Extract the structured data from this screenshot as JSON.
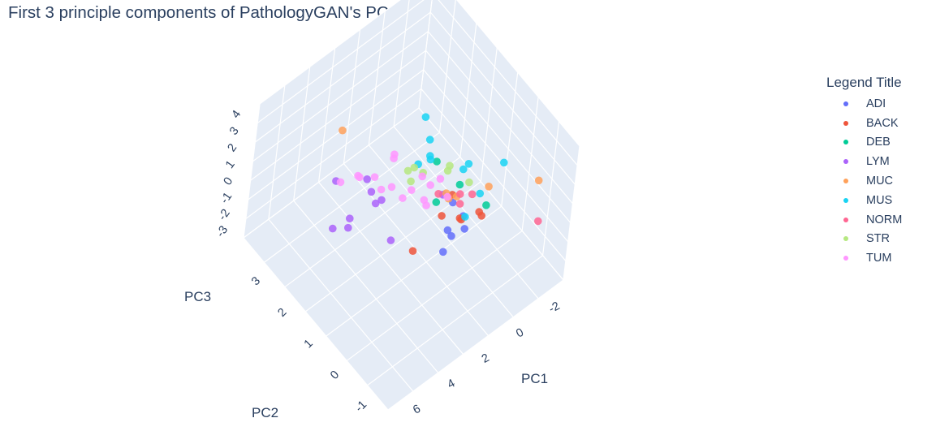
{
  "chart_data": {
    "type": "scatter",
    "title": "First 3 principle components of PathologyGAN's PCA feature",
    "legend_title": "Legend Title",
    "legend_position": "top-right",
    "grid": true,
    "axes": {
      "x": {
        "label": "PC1",
        "ticks": [
          "-2",
          "0",
          "2",
          "4",
          "6"
        ]
      },
      "y": {
        "label": "PC2",
        "ticks": [
          "-1",
          "0",
          "1",
          "2",
          "3"
        ]
      },
      "z": {
        "label": "PC3",
        "ticks": [
          "-3",
          "-2",
          "-1",
          "0",
          "1",
          "2",
          "3",
          "4"
        ]
      }
    },
    "series": [
      {
        "name": "ADI",
        "color": "#636efa",
        "x": [
          2.0,
          1.6,
          1.2,
          1.9,
          2.6,
          1.4
        ],
        "y": [
          -0.2,
          -0.4,
          -0.1,
          0.0,
          -0.3,
          0.2
        ],
        "z": [
          0.5,
          1.0,
          0.9,
          0.4,
          0.2,
          1.3
        ]
      },
      {
        "name": "BACK",
        "color": "#ef553b",
        "x": [
          1.8,
          2.2,
          3.2,
          0.8,
          1.0,
          1.5,
          1.3
        ],
        "y": [
          -0.3,
          0.1,
          0.4,
          -0.4,
          -0.6,
          -0.2,
          0.3
        ],
        "z": [
          1.6,
          1.3,
          -0.6,
          1.4,
          1.7,
          1.1,
          1.5
        ]
      },
      {
        "name": "DEB",
        "color": "#00cc96",
        "x": [
          0.4,
          0.9,
          1.2,
          1.7
        ],
        "y": [
          -0.4,
          0.3,
          1.0,
          0.6
        ],
        "z": [
          1.5,
          1.8,
          2.1,
          0.8
        ]
      },
      {
        "name": "LYM",
        "color": "#ab63fa",
        "x": [
          3.6,
          4.0,
          5.0,
          4.6,
          4.3,
          5.8,
          5.4,
          4.6,
          2.1,
          2.9
        ],
        "y": [
          2.0,
          1.6,
          2.3,
          1.1,
          0.6,
          1.8,
          1.5,
          1.9,
          0.2,
          1.8
        ],
        "z": [
          1.0,
          1.3,
          1.4,
          2.0,
          0.5,
          0.1,
          0.4,
          -0.4,
          2.3,
          -0.4
        ]
      },
      {
        "name": "MUC",
        "color": "#ffa15a",
        "x": [
          -2.0,
          -0.2,
          1.2,
          1.7,
          4.4,
          1.9
        ],
        "y": [
          -0.8,
          -0.1,
          0.2,
          0.3,
          2.6,
          0.1
        ],
        "z": [
          1.9,
          1.6,
          1.5,
          1.9,
          3.4,
          2.1
        ]
      },
      {
        "name": "MUS",
        "color": "#19d3f3",
        "x": [
          0.3,
          1.1,
          1.6,
          0.5,
          2.0,
          -0.6,
          2.0,
          1.3,
          0.6,
          0.7
        ],
        "y": [
          0.4,
          1.3,
          1.4,
          -0.2,
          0.8,
          -0.3,
          0.9,
          1.5,
          0.4,
          0.1
        ],
        "z": [
          2.4,
          1.8,
          1.5,
          1.9,
          3.2,
          3.1,
          4.2,
          3.9,
          2.3,
          0.1
        ]
      },
      {
        "name": "NORM",
        "color": "#ff6692",
        "x": [
          1.7,
          2.0,
          -1.5,
          1.0,
          0.8
        ],
        "y": [
          -0.2,
          0.4,
          -1.2,
          0.2,
          -0.1
        ],
        "z": [
          2.2,
          1.9,
          0.6,
          1.5,
          1.9
        ]
      },
      {
        "name": "STR",
        "color": "#b6e880",
        "x": [
          2.6,
          2.4,
          2.9,
          1.5,
          0.9,
          1.2,
          1.8
        ],
        "y": [
          1.0,
          1.3,
          0.9,
          0.4,
          0.0,
          0.6,
          1.1
        ],
        "z": [
          2.8,
          1.9,
          2.4,
          3.2,
          2.5,
          2.3,
          1.7
        ]
      },
      {
        "name": "TUM",
        "color": "#ff97ff",
        "x": [
          3.2,
          3.4,
          2.4,
          3.7,
          3.3,
          3.9,
          2.2,
          2.8,
          2.5,
          1.6,
          4.4,
          4.1,
          2.0,
          2.3,
          4.7,
          3.0
        ],
        "y": [
          1.4,
          1.3,
          0.8,
          1.1,
          0.9,
          1.6,
          0.6,
          0.9,
          0.5,
          0.3,
          1.9,
          2.0,
          0.4,
          0.7,
          2.3,
          1.8
        ],
        "z": [
          3.3,
          3.4,
          2.5,
          2.3,
          1.7,
          2.1,
          2.2,
          1.8,
          1.4,
          1.6,
          2.0,
          1.5,
          2.8,
          1.2,
          1.1,
          0.3
        ]
      }
    ]
  }
}
